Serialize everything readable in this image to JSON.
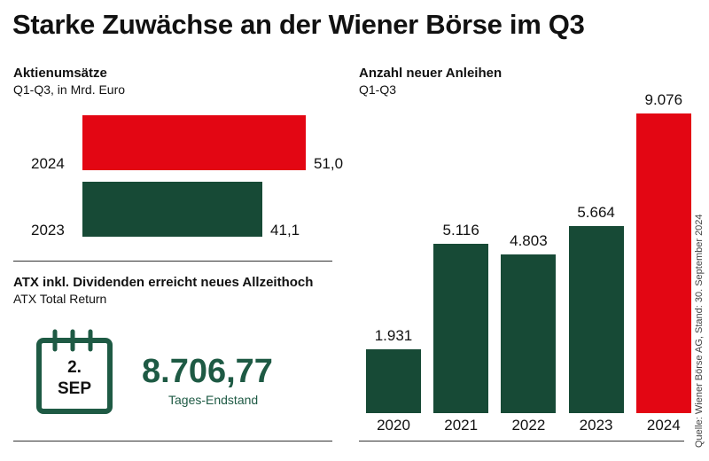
{
  "title": "Starke Zuwächse an der Wiener Börse im Q3",
  "colors": {
    "red": "#e30613",
    "green": "#174a36",
    "text_green": "#1e5a44"
  },
  "chart_data": [
    {
      "type": "bar",
      "orientation": "horizontal",
      "title": "Aktienumsätze",
      "subtitle": "Q1-Q3, in Mrd. Euro",
      "categories": [
        "2024",
        "2023"
      ],
      "values": [
        51.0,
        41.1
      ],
      "labels": [
        "51,0",
        "41,1"
      ],
      "colors": [
        "#e30613",
        "#174a36"
      ]
    },
    {
      "type": "bar",
      "title": "Anzahl neuer Anleihen",
      "subtitle": "Q1-Q3",
      "categories": [
        "2020",
        "2021",
        "2022",
        "2023",
        "2024"
      ],
      "values": [
        1931,
        5116,
        4803,
        5664,
        9076
      ],
      "labels": [
        "1.931",
        "5.116",
        "4.803",
        "5.664",
        "9.076"
      ],
      "colors": [
        "#174a36",
        "#174a36",
        "#174a36",
        "#174a36",
        "#e30613"
      ]
    }
  ],
  "atx": {
    "title": "ATX inkl. Dividenden erreicht neues Allzeithoch",
    "subtitle": "ATX Total Return",
    "date_day": "2.",
    "date_month": "SEP",
    "value": "8.706,77",
    "value_label": "Tages-Endstand",
    "icon": "calendar-icon"
  },
  "source": "Quelle: Wiener Börse AG, Stand: 30. September 2024"
}
